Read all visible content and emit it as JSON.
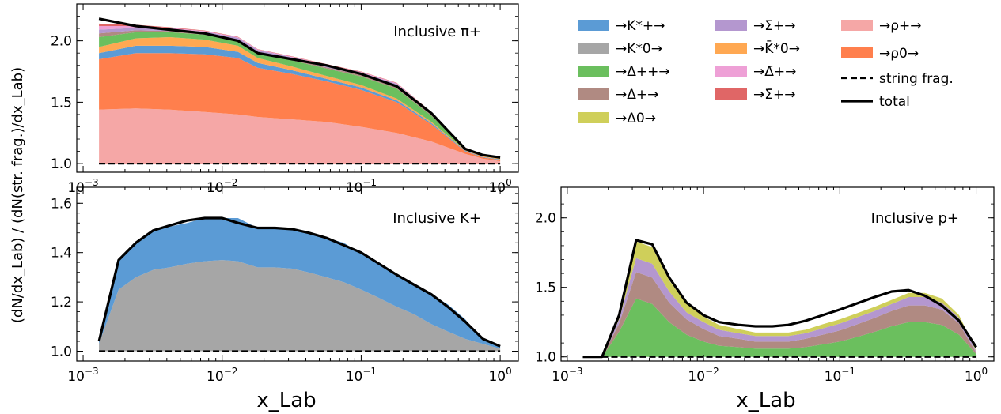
{
  "figure": {
    "ylabel": "(dN/dx_Lab) / (dN(str. frag.)/dx_Lab)",
    "xlabel": "x_Lab"
  },
  "legend": [
    {
      "label": "→K*+→",
      "color": "#5b9bd5",
      "kind": "patch"
    },
    {
      "label": "→K*0→",
      "color": "#a6a6a6",
      "kind": "patch"
    },
    {
      "label": "→Δ++→",
      "color": "#6bbf5e",
      "kind": "patch"
    },
    {
      "label": "→Δ+→",
      "color": "#b08a82",
      "kind": "patch"
    },
    {
      "label": "→Δ0→",
      "color": "#cfcf5a",
      "kind": "patch"
    },
    {
      "label": "→Σ+→",
      "color": "#b497cf",
      "kind": "patch"
    },
    {
      "label": "→K̄*0→",
      "color": "#ffa852",
      "kind": "patch"
    },
    {
      "label": "→Δ̄+→",
      "color": "#eea0d6",
      "kind": "patch"
    },
    {
      "label": "→Σ̄+→",
      "color": "#e06666",
      "kind": "patch"
    },
    {
      "label": "→ρ+→",
      "color": "#f5a7a6",
      "kind": "patch"
    },
    {
      "label": "→ρ0→",
      "color": "#ff7f4d",
      "kind": "patch"
    },
    {
      "label": "string frag.",
      "color": "#000000",
      "kind": "dashed"
    },
    {
      "label": "total",
      "color": "#000000",
      "kind": "solid"
    }
  ],
  "chart_data": [
    {
      "type": "area",
      "title": "Inclusive π+",
      "xscale": "log",
      "xlim": [
        0.0009,
        1.35
      ],
      "ylim": [
        0.93,
        2.3
      ],
      "yticks": [
        "1.0",
        "1.5",
        "2.0"
      ],
      "xticks": [
        "10−3",
        "10−2",
        "10−1",
        "100"
      ],
      "x": [
        0.0013,
        0.0024,
        0.0042,
        0.0075,
        0.013,
        0.018,
        0.032,
        0.056,
        0.1,
        0.18,
        0.32,
        0.56,
        0.75,
        1.0
      ],
      "series": [
        {
          "name": "→ρ+→",
          "color": "#f5a7a6",
          "values": [
            0.44,
            0.45,
            0.44,
            0.42,
            0.4,
            0.38,
            0.36,
            0.34,
            0.3,
            0.25,
            0.18,
            0.08,
            0.04,
            0.02
          ]
        },
        {
          "name": "→ρ0→",
          "color": "#ff7f4d",
          "values": [
            0.41,
            0.45,
            0.46,
            0.47,
            0.46,
            0.4,
            0.37,
            0.33,
            0.3,
            0.25,
            0.14,
            0.02,
            0.01,
            0.01
          ]
        },
        {
          "name": "→K*+→",
          "color": "#5b9bd5",
          "values": [
            0.05,
            0.06,
            0.06,
            0.06,
            0.05,
            0.04,
            0.03,
            0.02,
            0.02,
            0.015,
            0.01,
            0.005,
            0.005,
            0.005
          ]
        },
        {
          "name": "→K̄*0→",
          "color": "#ffa852",
          "values": [
            0.05,
            0.06,
            0.07,
            0.06,
            0.05,
            0.04,
            0.03,
            0.025,
            0.02,
            0.015,
            0.01,
            0.005,
            0.005,
            0.005
          ]
        },
        {
          "name": "→Δ++→",
          "color": "#6bbf5e",
          "values": [
            0.08,
            0.05,
            0.04,
            0.04,
            0.04,
            0.04,
            0.05,
            0.06,
            0.07,
            0.08,
            0.05,
            0.01,
            0.005,
            0.005
          ]
        },
        {
          "name": "→Δ+→",
          "color": "#b08a82",
          "values": [
            0.03,
            0.015,
            0.01,
            0.01,
            0.01,
            0.01,
            0.01,
            0.01,
            0.012,
            0.015,
            0.01,
            0.003,
            0.002,
            0.002
          ]
        },
        {
          "name": "→Σ+→",
          "color": "#b497cf",
          "values": [
            0.03,
            0.02,
            0.015,
            0.015,
            0.015,
            0.015,
            0.015,
            0.018,
            0.02,
            0.025,
            0.015,
            0.005,
            0.002,
            0.002
          ]
        },
        {
          "name": "→Δ̄+→",
          "color": "#eea0d6",
          "values": [
            0.03,
            0.015,
            0.01,
            0.005,
            0.005,
            0.005,
            0.005,
            0.005,
            0.005,
            0.005,
            0.003,
            0.002,
            0.002,
            0.002
          ]
        },
        {
          "name": "→Σ̄+→",
          "color": "#e06666",
          "values": [
            0.02,
            0.01,
            0.005,
            0.004,
            0.003,
            0.003,
            0.003,
            0.003,
            0.003,
            0.003,
            0.002,
            0.002,
            0.002,
            0.002
          ]
        }
      ],
      "total": [
        2.18,
        2.12,
        2.09,
        2.06,
        2.0,
        1.9,
        1.85,
        1.8,
        1.73,
        1.63,
        1.41,
        1.12,
        1.07,
        1.05
      ],
      "string_frag": 1.0
    },
    {
      "type": "area",
      "title": "Inclusive K+",
      "xscale": "log",
      "xlim": [
        0.0009,
        1.35
      ],
      "ylim": [
        0.96,
        1.665
      ],
      "yticks": [
        "1.0",
        "1.2",
        "1.4",
        "1.6"
      ],
      "xticks": [
        "10−3",
        "10−2",
        "10−1",
        "100"
      ],
      "x": [
        0.0013,
        0.0018,
        0.0024,
        0.0032,
        0.0042,
        0.0056,
        0.0075,
        0.01,
        0.013,
        0.018,
        0.024,
        0.032,
        0.042,
        0.056,
        0.075,
        0.1,
        0.13,
        0.18,
        0.24,
        0.32,
        0.42,
        0.56,
        0.75,
        1.0
      ],
      "series": [
        {
          "name": "→K*0→",
          "color": "#a6a6a6",
          "values": [
            0.03,
            0.25,
            0.3,
            0.33,
            0.34,
            0.355,
            0.365,
            0.37,
            0.365,
            0.34,
            0.34,
            0.335,
            0.32,
            0.3,
            0.28,
            0.25,
            0.22,
            0.18,
            0.15,
            0.11,
            0.08,
            0.05,
            0.03,
            0.01
          ]
        },
        {
          "name": "→K*+→",
          "color": "#5b9bd5",
          "values": [
            0.015,
            0.115,
            0.14,
            0.16,
            0.165,
            0.165,
            0.175,
            0.17,
            0.175,
            0.16,
            0.16,
            0.16,
            0.16,
            0.16,
            0.16,
            0.145,
            0.145,
            0.13,
            0.12,
            0.12,
            0.11,
            0.08,
            0.015,
            0.01
          ]
        }
      ],
      "total": [
        1.04,
        1.37,
        1.44,
        1.49,
        1.51,
        1.53,
        1.54,
        1.54,
        1.52,
        1.5,
        1.5,
        1.495,
        1.48,
        1.46,
        1.43,
        1.4,
        1.36,
        1.31,
        1.27,
        1.23,
        1.18,
        1.12,
        1.05,
        1.02
      ],
      "string_frag": 1.0
    },
    {
      "type": "area",
      "title": "Inclusive p+",
      "xscale": "log",
      "xlim": [
        0.0009,
        1.35
      ],
      "ylim": [
        0.97,
        2.22
      ],
      "yticks": [
        "1.0",
        "1.5",
        "2.0"
      ],
      "xticks": [
        "10−3",
        "10−2",
        "10−1",
        "100"
      ],
      "x": [
        0.0013,
        0.0018,
        0.0024,
        0.0032,
        0.0042,
        0.0056,
        0.0075,
        0.01,
        0.013,
        0.018,
        0.024,
        0.032,
        0.042,
        0.056,
        0.075,
        0.1,
        0.13,
        0.18,
        0.24,
        0.32,
        0.42,
        0.56,
        0.75,
        1.0
      ],
      "series": [
        {
          "name": "→Δ++→",
          "color": "#6bbf5e",
          "values": [
            0.0,
            0.0,
            0.18,
            0.42,
            0.38,
            0.25,
            0.16,
            0.11,
            0.08,
            0.07,
            0.06,
            0.06,
            0.06,
            0.07,
            0.09,
            0.11,
            0.14,
            0.18,
            0.22,
            0.25,
            0.25,
            0.23,
            0.16,
            0.02
          ]
        },
        {
          "name": "→Δ+→",
          "color": "#b08a82",
          "values": [
            0.0,
            0.0,
            0.06,
            0.19,
            0.19,
            0.14,
            0.11,
            0.09,
            0.07,
            0.06,
            0.05,
            0.05,
            0.05,
            0.06,
            0.07,
            0.08,
            0.09,
            0.1,
            0.11,
            0.12,
            0.12,
            0.11,
            0.08,
            0.01
          ]
        },
        {
          "name": "→Σ+→",
          "color": "#b497cf",
          "values": [
            0.0,
            0.0,
            0.03,
            0.1,
            0.1,
            0.08,
            0.05,
            0.05,
            0.045,
            0.04,
            0.04,
            0.04,
            0.04,
            0.04,
            0.045,
            0.05,
            0.05,
            0.05,
            0.05,
            0.06,
            0.06,
            0.05,
            0.04,
            0.01
          ]
        },
        {
          "name": "→Δ0→",
          "color": "#cfcf5a",
          "values": [
            0.0,
            0.0,
            0.02,
            0.12,
            0.12,
            0.08,
            0.06,
            0.04,
            0.035,
            0.03,
            0.025,
            0.025,
            0.025,
            0.025,
            0.03,
            0.03,
            0.03,
            0.03,
            0.03,
            0.03,
            0.03,
            0.03,
            0.02,
            0.005
          ]
        }
      ],
      "total": [
        1.0,
        1.0,
        1.3,
        1.84,
        1.81,
        1.57,
        1.39,
        1.3,
        1.25,
        1.23,
        1.22,
        1.22,
        1.23,
        1.26,
        1.3,
        1.34,
        1.38,
        1.43,
        1.47,
        1.48,
        1.44,
        1.37,
        1.26,
        1.07
      ],
      "string_frag": 1.0
    }
  ]
}
